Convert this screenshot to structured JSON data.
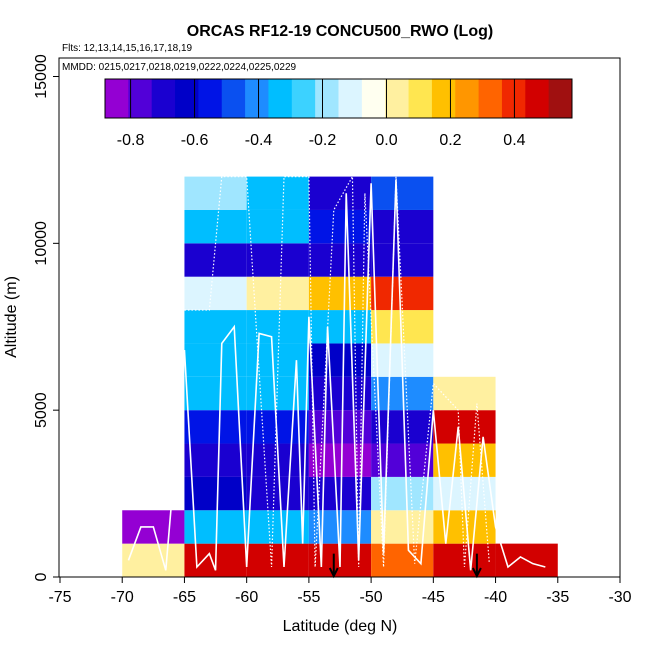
{
  "chart_data": {
    "type": "heatmap",
    "title": "ORCAS RF12-19 CONCU500_RWO (Log)",
    "subtitle_flights": "Flts: 12,13,14,15,16,17,18,19",
    "subtitle_dates": "MMDD: 0215,0217,0218,0219,0222,0224,0225,0229",
    "xlabel": "Latitude (deg N)",
    "ylabel": "Altitude (m)",
    "xlim": [
      -75,
      -30
    ],
    "ylim": [
      0,
      15000
    ],
    "x_ticks": [
      -75,
      -70,
      -65,
      -60,
      -55,
      -50,
      -45,
      -40,
      -35,
      -30
    ],
    "x_tick_labels": [
      "-75",
      "-70",
      "-65",
      "-60",
      "-55",
      "-50",
      "-45",
      "-40",
      "-35",
      "-30"
    ],
    "y_ticks": [
      0,
      5000,
      10000,
      15000
    ],
    "y_tick_labels": [
      "0",
      "5000",
      "10000",
      "15000"
    ],
    "colorbar": {
      "range": [
        -0.88,
        0.58
      ],
      "ticks": [
        -0.8,
        -0.6,
        -0.4,
        -0.2,
        0.0,
        0.2,
        0.4
      ],
      "tick_labels": [
        "-0.8",
        "-0.6",
        "-0.4",
        "-0.2",
        "0.0",
        "0.2",
        "0.4"
      ],
      "colors": [
        "#9400D3",
        "#5200D8",
        "#1A00D0",
        "#0000C8",
        "#0014E6",
        "#0A50F0",
        "#1E8CFF",
        "#00BEFF",
        "#3CD2FF",
        "#A0E6FF",
        "#DCF5FF",
        "#FFFFF0",
        "#FFF0A0",
        "#FFE650",
        "#FFC000",
        "#FF9600",
        "#FF6400",
        "#F02800",
        "#D20000",
        "#A01010"
      ]
    },
    "bin_width_deg": 5,
    "bin_height_m": 1000,
    "cells": [
      {
        "lat": -70,
        "alt": 0,
        "value": 0.05
      },
      {
        "lat": -70,
        "alt": 1000,
        "value": -0.85
      },
      {
        "lat": -65,
        "alt": 0,
        "value": 0.45
      },
      {
        "lat": -65,
        "alt": 1000,
        "value": -0.35
      },
      {
        "lat": -65,
        "alt": 2000,
        "value": -0.65
      },
      {
        "lat": -65,
        "alt": 3000,
        "value": -0.68
      },
      {
        "lat": -65,
        "alt": 4000,
        "value": -0.55
      },
      {
        "lat": -65,
        "alt": 5000,
        "value": -0.35
      },
      {
        "lat": -65,
        "alt": 6000,
        "value": -0.3
      },
      {
        "lat": -65,
        "alt": 7000,
        "value": -0.3
      },
      {
        "lat": -65,
        "alt": 8000,
        "value": -0.15
      },
      {
        "lat": -65,
        "alt": 9000,
        "value": -0.7
      },
      {
        "lat": -65,
        "alt": 10000,
        "value": -0.3
      },
      {
        "lat": -65,
        "alt": 11000,
        "value": -0.22
      },
      {
        "lat": -60,
        "alt": 0,
        "value": 0.45
      },
      {
        "lat": -60,
        "alt": 1000,
        "value": -0.35
      },
      {
        "lat": -60,
        "alt": 2000,
        "value": -0.68
      },
      {
        "lat": -60,
        "alt": 3000,
        "value": -0.68
      },
      {
        "lat": -60,
        "alt": 4000,
        "value": -0.55
      },
      {
        "lat": -60,
        "alt": 5000,
        "value": -0.35
      },
      {
        "lat": -60,
        "alt": 6000,
        "value": -0.3
      },
      {
        "lat": -60,
        "alt": 7000,
        "value": -0.3
      },
      {
        "lat": -60,
        "alt": 8000,
        "value": 0.06
      },
      {
        "lat": -60,
        "alt": 9000,
        "value": -0.7
      },
      {
        "lat": -60,
        "alt": 10000,
        "value": -0.3
      },
      {
        "lat": -60,
        "alt": 11000,
        "value": -0.3
      },
      {
        "lat": -55,
        "alt": 0,
        "value": 0.46
      },
      {
        "lat": -55,
        "alt": 1000,
        "value": -0.42
      },
      {
        "lat": -55,
        "alt": 2000,
        "value": -0.72
      },
      {
        "lat": -55,
        "alt": 3000,
        "value": -0.85
      },
      {
        "lat": -55,
        "alt": 4000,
        "value": -0.75
      },
      {
        "lat": -55,
        "alt": 5000,
        "value": -0.72
      },
      {
        "lat": -55,
        "alt": 6000,
        "value": -0.62
      },
      {
        "lat": -55,
        "alt": 7000,
        "value": -0.3
      },
      {
        "lat": -55,
        "alt": 8000,
        "value": 0.2
      },
      {
        "lat": -55,
        "alt": 9000,
        "value": -0.7
      },
      {
        "lat": -55,
        "alt": 10000,
        "value": -0.55
      },
      {
        "lat": -55,
        "alt": 11000,
        "value": -0.7
      },
      {
        "lat": -50,
        "alt": 0,
        "value": 0.35
      },
      {
        "lat": -50,
        "alt": 1000,
        "value": 0.03
      },
      {
        "lat": -50,
        "alt": 2000,
        "value": -0.2
      },
      {
        "lat": -50,
        "alt": 3000,
        "value": -0.75
      },
      {
        "lat": -50,
        "alt": 4000,
        "value": -0.68
      },
      {
        "lat": -50,
        "alt": 5000,
        "value": -0.42
      },
      {
        "lat": -50,
        "alt": 6000,
        "value": -0.15
      },
      {
        "lat": -50,
        "alt": 7000,
        "value": 0.1
      },
      {
        "lat": -50,
        "alt": 8000,
        "value": 0.42
      },
      {
        "lat": -50,
        "alt": 9000,
        "value": -0.7
      },
      {
        "lat": -50,
        "alt": 10000,
        "value": -0.7
      },
      {
        "lat": -50,
        "alt": 11000,
        "value": -0.45
      },
      {
        "lat": -45,
        "alt": 0,
        "value": 0.45
      },
      {
        "lat": -45,
        "alt": 1000,
        "value": 0.15
      },
      {
        "lat": -45,
        "alt": 2000,
        "value": -0.1
      },
      {
        "lat": -45,
        "alt": 3000,
        "value": 0.18
      },
      {
        "lat": -45,
        "alt": 4000,
        "value": 0.46
      },
      {
        "lat": -45,
        "alt": 5000,
        "value": 0.03
      },
      {
        "lat": -40,
        "alt": 0,
        "value": 0.5
      }
    ],
    "markers": [
      {
        "type": "arrow",
        "lat": -53.0
      },
      {
        "type": "arrow",
        "lat": -41.5
      }
    ]
  }
}
